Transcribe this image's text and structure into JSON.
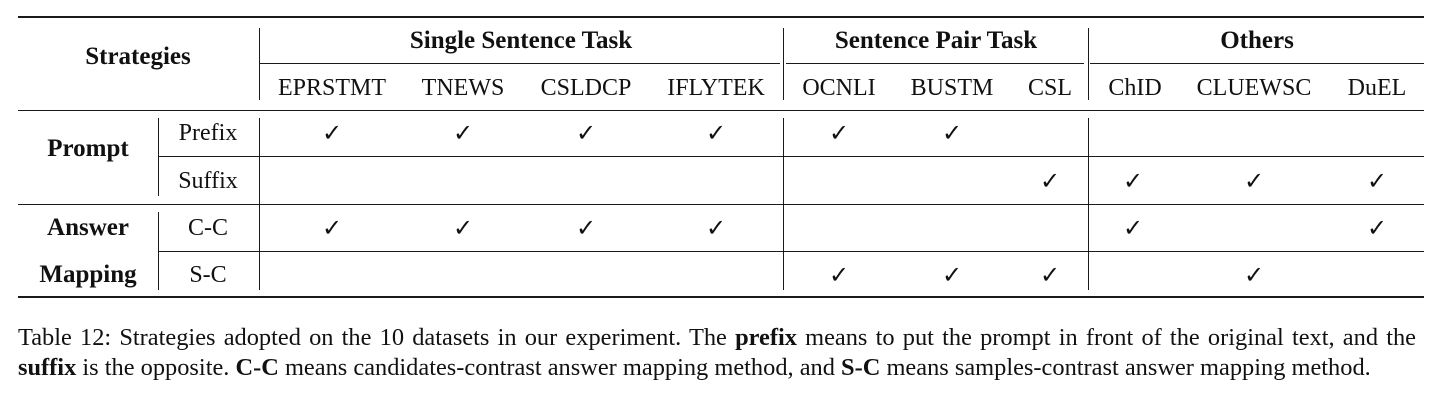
{
  "header": {
    "strategies": "Strategies",
    "groups": [
      "Single Sentence Task",
      "Sentence Pair Task",
      "Others"
    ],
    "datasets": [
      "EPRSTMT",
      "TNEWS",
      "CSLDCP",
      "IFLYTEK",
      "OCNLI",
      "BUSTM",
      "CSL",
      "ChID",
      "CLUEWSC",
      "DuEL"
    ]
  },
  "rows": [
    {
      "label": "Prompt",
      "sub": "Prefix",
      "checks": [
        true,
        true,
        true,
        true,
        true,
        true,
        false,
        false,
        false,
        false
      ]
    },
    {
      "label": "",
      "sub": "Suffix",
      "checks": [
        false,
        false,
        false,
        false,
        false,
        false,
        true,
        true,
        true,
        true
      ]
    },
    {
      "label": "Answer",
      "sub": "C-C",
      "checks": [
        true,
        true,
        true,
        true,
        false,
        false,
        false,
        true,
        false,
        true
      ]
    },
    {
      "label": "Mapping",
      "sub": "S-C",
      "checks": [
        false,
        false,
        false,
        false,
        true,
        true,
        true,
        false,
        true,
        false
      ]
    }
  ],
  "check_symbol": "✓",
  "caption": {
    "p1": "Table 12: Strategies adopted on the 10 datasets in our experiment. The ",
    "b1": "prefix",
    "p2": " means to put the prompt in front of the original text, and the ",
    "b2": "suffix",
    "p3": " is the opposite. ",
    "b3": "C-C",
    "p4": " means candidates-contrast answer mapping method, and ",
    "b4": "S-C",
    "p5": " means samples-contrast answer mapping method."
  }
}
